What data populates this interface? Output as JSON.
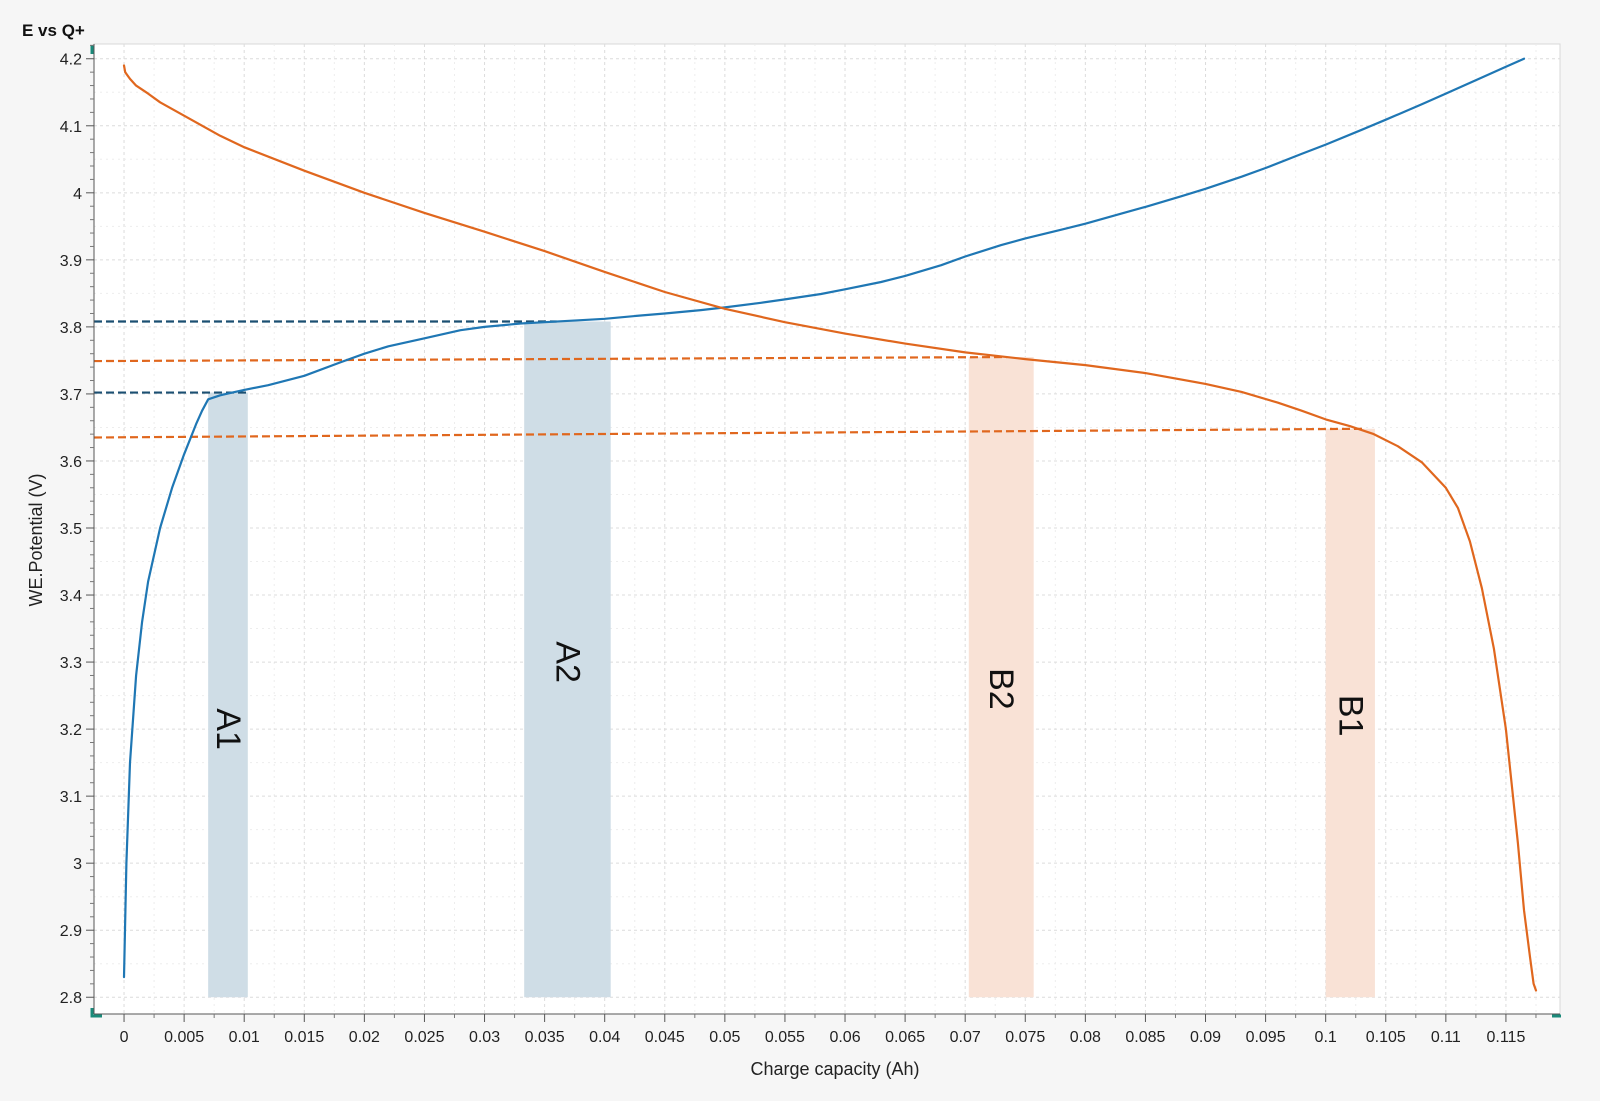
{
  "chart_data": {
    "type": "line",
    "title": "E vs Q+",
    "xlabel": "Charge capacity (Ah)",
    "ylabel": "WE.Potential (V)",
    "xlim": [
      -0.0025,
      0.1195
    ],
    "ylim": [
      2.775,
      4.222
    ],
    "x_ticks": [
      0,
      0.005,
      0.01,
      0.015,
      0.02,
      0.025,
      0.03,
      0.035,
      0.04,
      0.045,
      0.05,
      0.055,
      0.06,
      0.065,
      0.07,
      0.075,
      0.08,
      0.085,
      0.09,
      0.095,
      0.1,
      0.105,
      0.11,
      0.115
    ],
    "x_tick_labels": [
      "0",
      "0.005",
      "0.01",
      "0.015",
      "0.02",
      "0.025",
      "0.03",
      "0.035",
      "0.04",
      "0.045",
      "0.05",
      "0.055",
      "0.06",
      "0.065",
      "0.07",
      "0.075",
      "0.08",
      "0.085",
      "0.09",
      "0.095",
      "0.1",
      "0.105",
      "0.11",
      "0.115"
    ],
    "y_ticks": [
      2.8,
      2.9,
      3.0,
      3.1,
      3.2,
      3.3,
      3.4,
      3.5,
      3.6,
      3.7,
      3.8,
      3.9,
      4.0,
      4.1,
      4.2
    ],
    "y_tick_labels": [
      "2.8",
      "2.9",
      "3",
      "3.1",
      "3.2",
      "3.3",
      "3.4",
      "3.5",
      "3.6",
      "3.7",
      "3.8",
      "3.9",
      "4",
      "4.1",
      "4.2"
    ],
    "grid": true,
    "colors": {
      "charge": "#1f77b4",
      "discharge": "#e0671e",
      "band_blue": "#cfdde6",
      "band_orange": "#f9e2d6",
      "dash_blue": "#1b4f72",
      "dash_orange": "#e0671e"
    },
    "series": [
      {
        "key": "charge",
        "x": [
          0,
          0.0002,
          0.0005,
          0.001,
          0.0015,
          0.002,
          0.003,
          0.004,
          0.005,
          0.006,
          0.0065,
          0.007,
          0.008,
          0.009,
          0.01,
          0.012,
          0.015,
          0.018,
          0.02,
          0.022,
          0.025,
          0.028,
          0.03,
          0.033,
          0.035,
          0.038,
          0.04,
          0.043,
          0.045,
          0.048,
          0.05,
          0.053,
          0.055,
          0.058,
          0.06,
          0.063,
          0.065,
          0.068,
          0.07,
          0.073,
          0.075,
          0.078,
          0.08,
          0.083,
          0.085,
          0.088,
          0.09,
          0.093,
          0.095,
          0.098,
          0.1,
          0.103,
          0.105,
          0.108,
          0.11,
          0.113,
          0.115,
          0.1165
        ],
        "y": [
          2.83,
          3.0,
          3.15,
          3.28,
          3.36,
          3.42,
          3.5,
          3.56,
          3.61,
          3.655,
          3.675,
          3.692,
          3.698,
          3.702,
          3.706,
          3.713,
          3.727,
          3.747,
          3.76,
          3.771,
          3.783,
          3.795,
          3.8,
          3.805,
          3.807,
          3.81,
          3.812,
          3.817,
          3.82,
          3.825,
          3.829,
          3.836,
          3.841,
          3.849,
          3.856,
          3.867,
          3.876,
          3.892,
          3.905,
          3.922,
          3.932,
          3.945,
          3.954,
          3.969,
          3.979,
          3.995,
          4.006,
          4.024,
          4.037,
          4.058,
          4.072,
          4.094,
          4.109,
          4.132,
          4.148,
          4.172,
          4.188,
          4.2
        ]
      },
      {
        "key": "discharge",
        "x": [
          0,
          0.0001,
          0.0005,
          0.001,
          0.002,
          0.003,
          0.005,
          0.008,
          0.01,
          0.015,
          0.02,
          0.025,
          0.03,
          0.035,
          0.04,
          0.045,
          0.05,
          0.055,
          0.06,
          0.065,
          0.07,
          0.075,
          0.08,
          0.085,
          0.09,
          0.093,
          0.096,
          0.098,
          0.1,
          0.102,
          0.104,
          0.106,
          0.108,
          0.11,
          0.111,
          0.112,
          0.113,
          0.114,
          0.115,
          0.116,
          0.1165,
          0.117,
          0.1173,
          0.1175
        ],
        "y": [
          4.19,
          4.18,
          4.17,
          4.16,
          4.148,
          4.135,
          4.115,
          4.085,
          4.068,
          4.033,
          4.0,
          3.97,
          3.942,
          3.913,
          3.882,
          3.852,
          3.827,
          3.807,
          3.79,
          3.775,
          3.762,
          3.752,
          3.743,
          3.731,
          3.715,
          3.703,
          3.687,
          3.675,
          3.662,
          3.652,
          3.64,
          3.622,
          3.598,
          3.56,
          3.53,
          3.48,
          3.41,
          3.32,
          3.2,
          3.03,
          2.93,
          2.86,
          2.82,
          2.81
        ]
      }
    ],
    "bands": [
      {
        "label": "A1",
        "x0": 0.007,
        "x1": 0.0103,
        "color": "blue",
        "label_y": 3.2
      },
      {
        "label": "A2",
        "x0": 0.0333,
        "x1": 0.0405,
        "color": "blue",
        "label_y": 3.3
      },
      {
        "label": "B2",
        "x0": 0.0703,
        "x1": 0.0757,
        "color": "orange",
        "label_y": 3.26
      },
      {
        "label": "B1",
        "x0": 0.1,
        "x1": 0.1041,
        "color": "orange",
        "label_y": 3.22
      }
    ],
    "guides": [
      {
        "x0": -0.0025,
        "x1": 0.0103,
        "y0": 3.702,
        "y1": 3.702,
        "color": "blue"
      },
      {
        "x0": -0.0025,
        "x1": 0.036,
        "y0": 3.808,
        "y1": 3.808,
        "color": "blue"
      },
      {
        "x0": -0.0025,
        "x1": 0.0735,
        "y0": 3.749,
        "y1": 3.755,
        "color": "orange"
      },
      {
        "x0": -0.0025,
        "x1": 0.1031,
        "y0": 3.635,
        "y1": 3.648,
        "color": "orange"
      }
    ]
  }
}
